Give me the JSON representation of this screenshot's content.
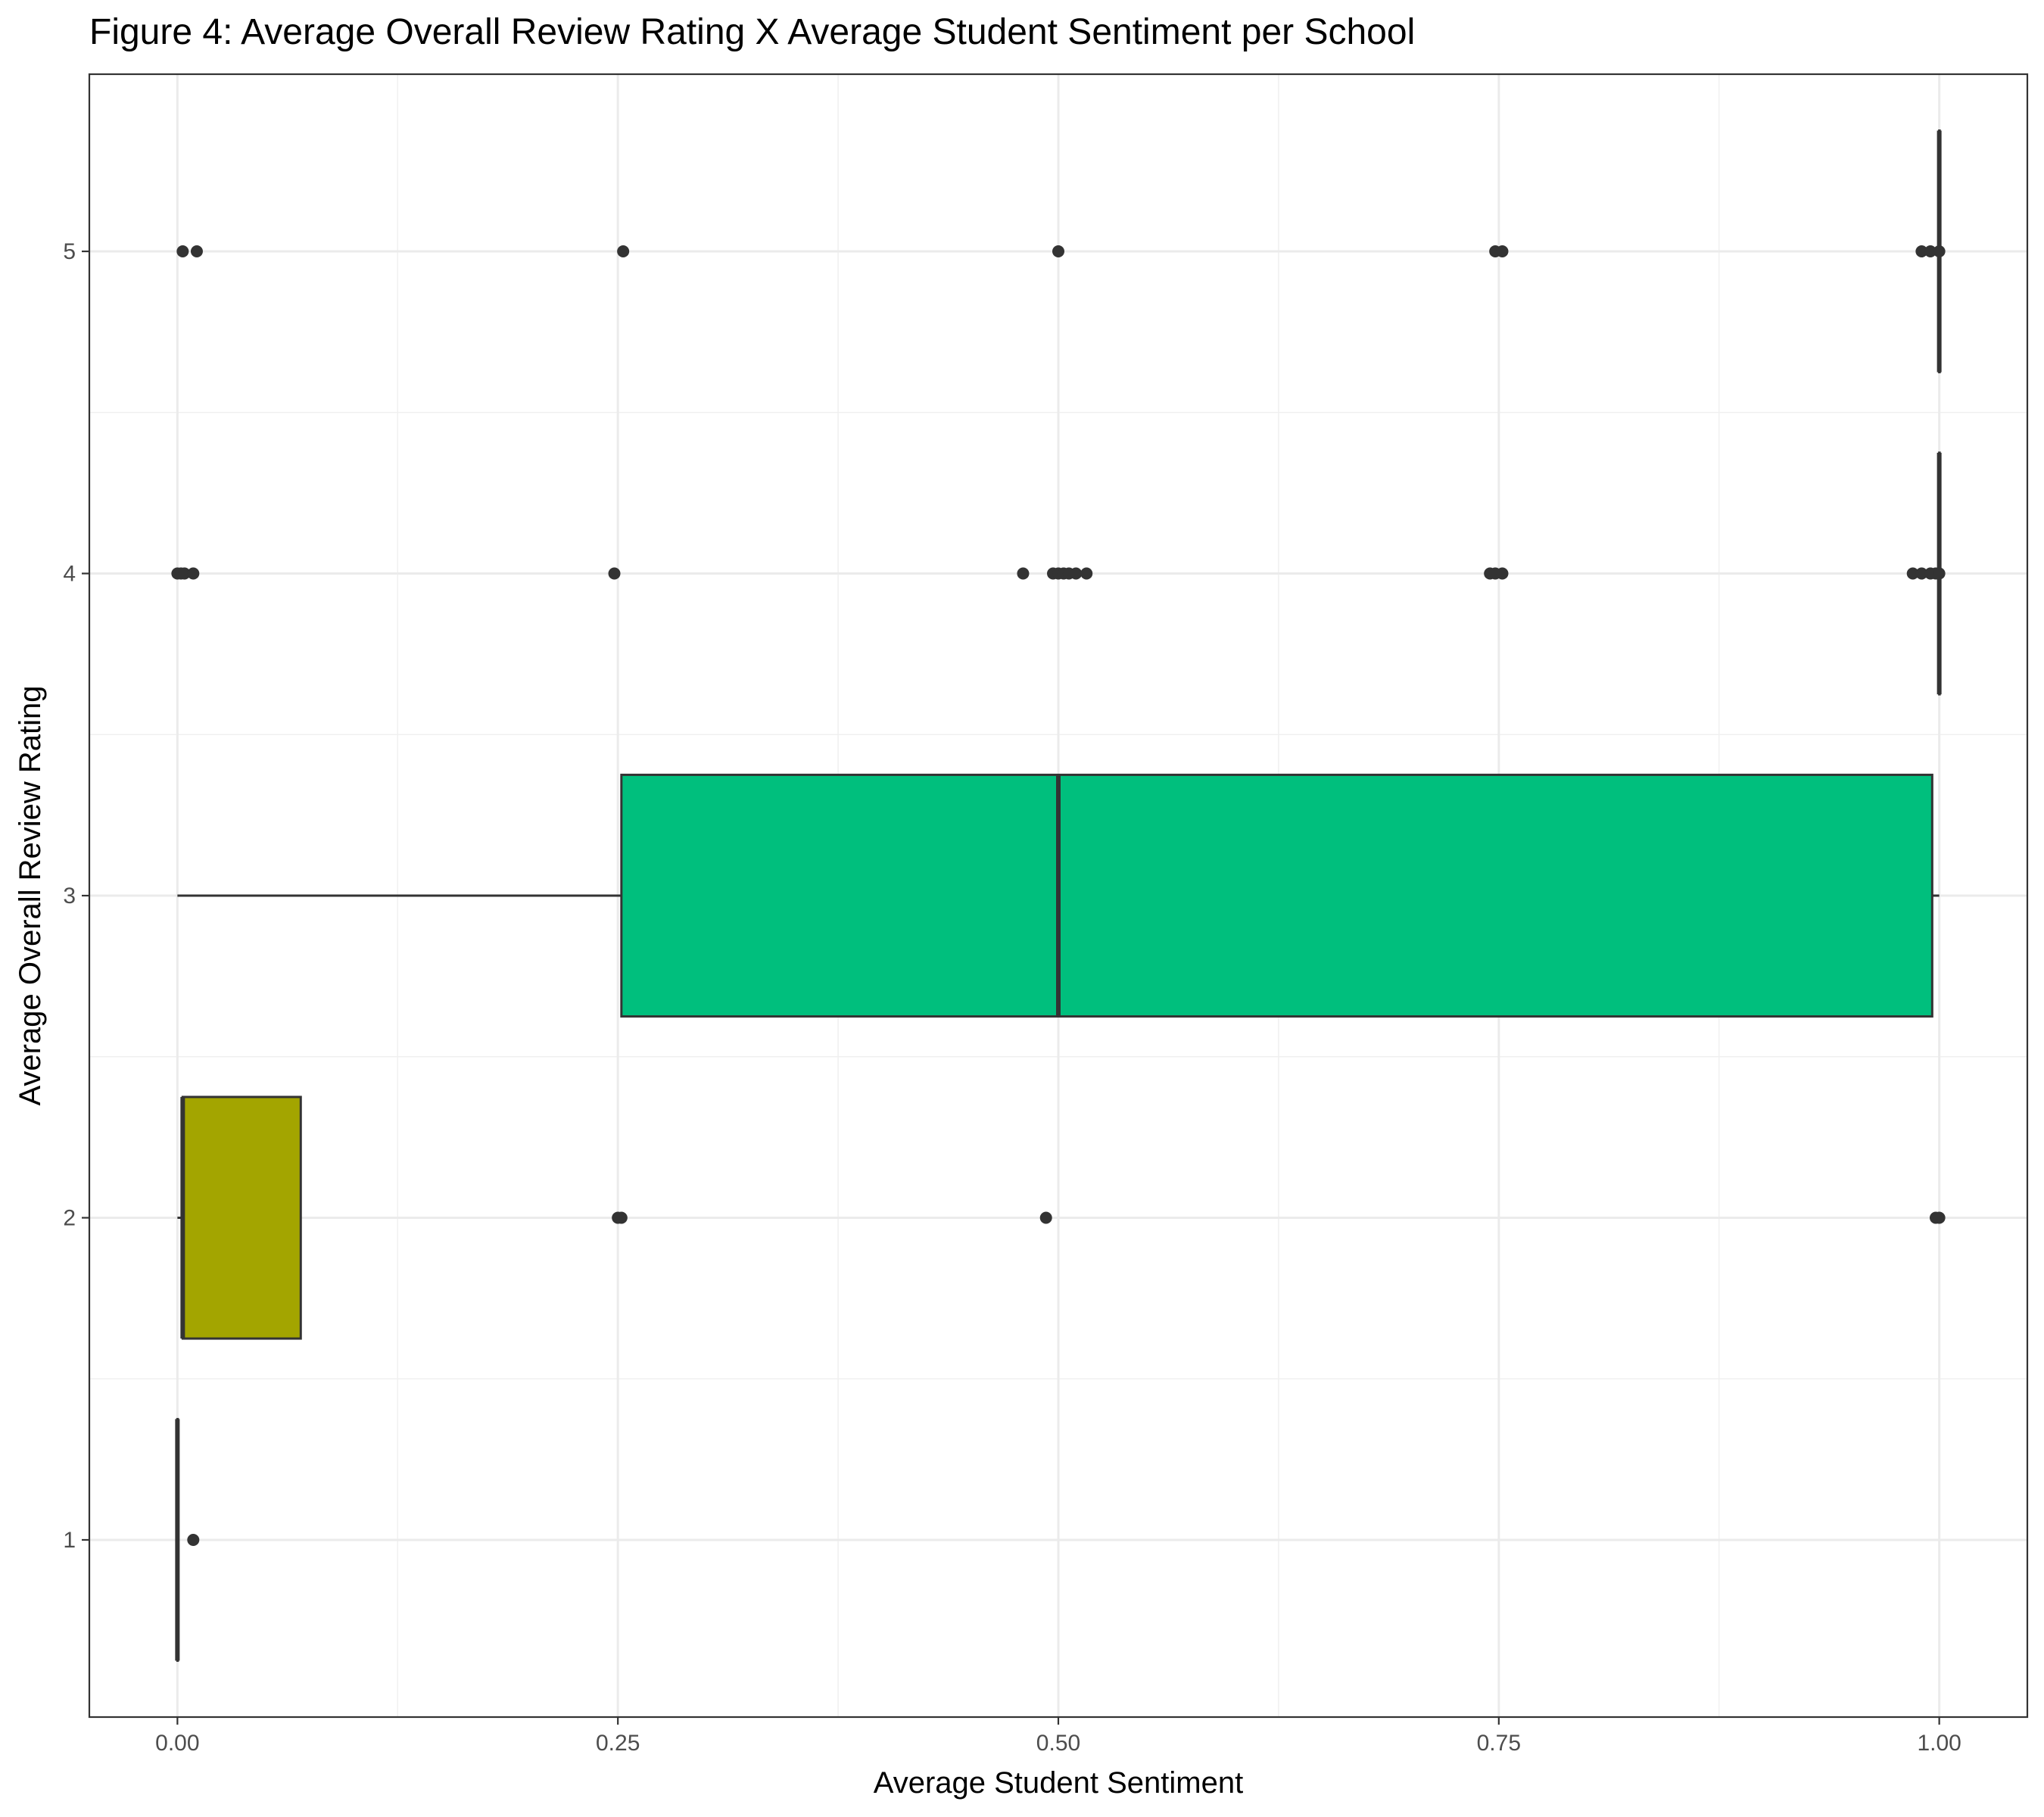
{
  "chart_data": {
    "type": "boxplot",
    "orientation": "horizontal",
    "title": "Figure 4: Average Overall Review Rating X Average Student Sentiment per School",
    "xlabel": "Average Student Sentiment",
    "ylabel": "Average Overall Review Rating",
    "xlim": [
      -0.05,
      1.05
    ],
    "ylim": [
      0.45,
      5.55
    ],
    "x_ticks": [
      0,
      0.25,
      0.5,
      0.75,
      1
    ],
    "x_tick_labels": [
      "0.00",
      "0.25",
      "0.50",
      "0.75",
      "1.00"
    ],
    "y_ticks": [
      1,
      2,
      3,
      4,
      5
    ],
    "y_tick_labels": [
      "1",
      "2",
      "3",
      "4",
      "5"
    ],
    "grid": true,
    "legend": "none",
    "outline_color": "#333333",
    "boxes": [
      {
        "y": 1,
        "min": 0.0,
        "q1": 0.0,
        "median": 0.0,
        "q3": 0.0,
        "max": 0.0,
        "fill": "#F8766D",
        "outliers": [
          0.009
        ]
      },
      {
        "y": 2,
        "min": 0.0,
        "q1": 0.003,
        "median": 0.003,
        "q3": 0.07,
        "max": 0.07,
        "fill": "#A3A500",
        "outliers": [
          0.25,
          0.252,
          0.493,
          0.998,
          1.0
        ]
      },
      {
        "y": 3,
        "min": 0.0,
        "q1": 0.252,
        "median": 0.5,
        "q3": 0.996,
        "max": 1.0,
        "fill": "#00BF7D",
        "outliers": []
      },
      {
        "y": 4,
        "min": 1.0,
        "q1": 1.0,
        "median": 1.0,
        "q3": 1.0,
        "max": 1.0,
        "fill": "#00B0F6",
        "outliers": [
          0.0,
          0.002,
          0.004,
          0.009,
          0.248,
          0.48,
          0.497,
          0.5,
          0.503,
          0.506,
          0.51,
          0.516,
          0.745,
          0.748,
          0.752,
          0.985,
          0.99,
          0.995,
          0.998,
          1.0
        ]
      },
      {
        "y": 5,
        "min": 1.0,
        "q1": 1.0,
        "median": 1.0,
        "q3": 1.0,
        "max": 1.0,
        "fill": "#E76BF3",
        "outliers": [
          0.003,
          0.011,
          0.253,
          0.5,
          0.748,
          0.752,
          0.99,
          0.995,
          1.0
        ]
      }
    ]
  }
}
